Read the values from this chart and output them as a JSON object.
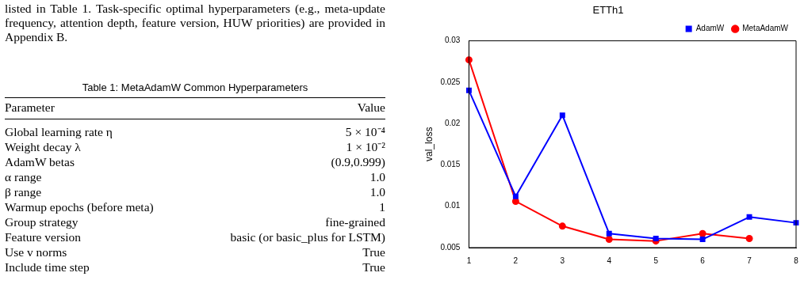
{
  "chart_data": [
    {
      "type": "other",
      "title": "Table 1: MetaAdamW Common Hyperparameters",
      "annotations": [
        "listed in Table 1.  Task-specific optimal hyperparameters (e.g., meta-update frequency, attention depth, feature version, HUW priorities) are provided in Appendix B.",
        "Parameter",
        "Value",
        "Global learning rate η",
        "5 × 10⁻⁴",
        "Weight decay λ",
        "1 × 10⁻²",
        "AdamW betas",
        "(0.9,0.999)",
        "α range",
        "1.0",
        "β range",
        "1.0",
        "Warmup epochs (before meta)",
        "1",
        "Group strategy",
        "fine-grained",
        "Feature version",
        "basic (or basic_plus for LSTM)",
        "Use v norms",
        "True",
        "Include time step",
        "True"
      ]
    },
    {
      "type": "line",
      "title": "ETTh1",
      "ylabel": "val_loss",
      "categories": [
        "1",
        "2",
        "3",
        "4",
        "5",
        "6",
        "7",
        "8"
      ],
      "series": [
        {
          "name": "AdamW",
          "color": "#0000ff",
          "marker": "square",
          "values": [
            0.024,
            0.0112,
            0.021,
            0.0067,
            0.0061,
            0.006,
            0.0087,
            0.008
          ]
        },
        {
          "name": "MetaAdamW",
          "color": "#ff0000",
          "marker": "circle",
          "values": [
            0.0277,
            0.0106,
            0.0076,
            0.006,
            0.0058,
            0.0067,
            0.0061,
            null
          ]
        }
      ],
      "ylim": [
        0.005,
        0.03
      ],
      "yticks": [
        0.005,
        0.01,
        0.015,
        0.02,
        0.025,
        0.03
      ],
      "grid": false,
      "legend": "top right"
    }
  ]
}
